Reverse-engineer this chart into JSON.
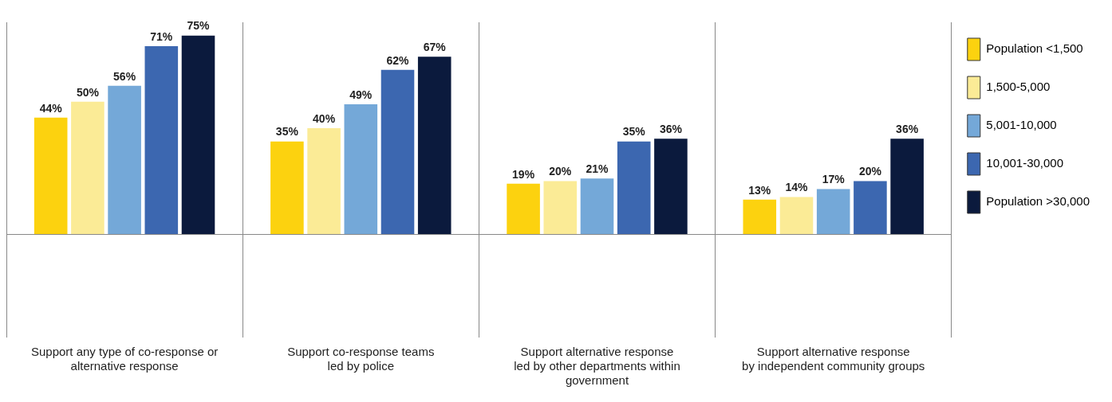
{
  "chart_data": {
    "type": "bar",
    "categories": [
      "Support any type of co-response or\nalternative response",
      "Support co-response teams\nled by police",
      "Support alternative response\nled by other departments within\ngovernment",
      "Support alternative response\nby independent community groups"
    ],
    "series": [
      {
        "name": "Population <1,500",
        "color": "#fcd20f",
        "values": [
          44,
          35,
          19,
          13
        ],
        "value_labels": [
          "44%",
          "35%",
          "19%",
          "13%"
        ]
      },
      {
        "name": "1,500-5,000",
        "color": "#fbeb96",
        "values": [
          50,
          40,
          20,
          14
        ],
        "value_labels": [
          "50%",
          "40%",
          "20%",
          "14%"
        ]
      },
      {
        "name": "5,001-10,000",
        "color": "#74a8d8",
        "values": [
          56,
          49,
          21,
          17
        ],
        "value_labels": [
          "56%",
          "49%",
          "21%",
          "17%"
        ]
      },
      {
        "name": "10,001-30,000",
        "color": "#3c67b0",
        "values": [
          71,
          62,
          35,
          20
        ],
        "value_labels": [
          "71%",
          "62%",
          "35%",
          "20%"
        ]
      },
      {
        "name": "Population >30,000",
        "color": "#0b1a3d",
        "values": [
          75,
          67,
          36,
          36
        ],
        "value_labels": [
          "75%",
          "67%",
          "36%",
          "36%"
        ]
      }
    ],
    "grid": "x",
    "legend": "right"
  }
}
